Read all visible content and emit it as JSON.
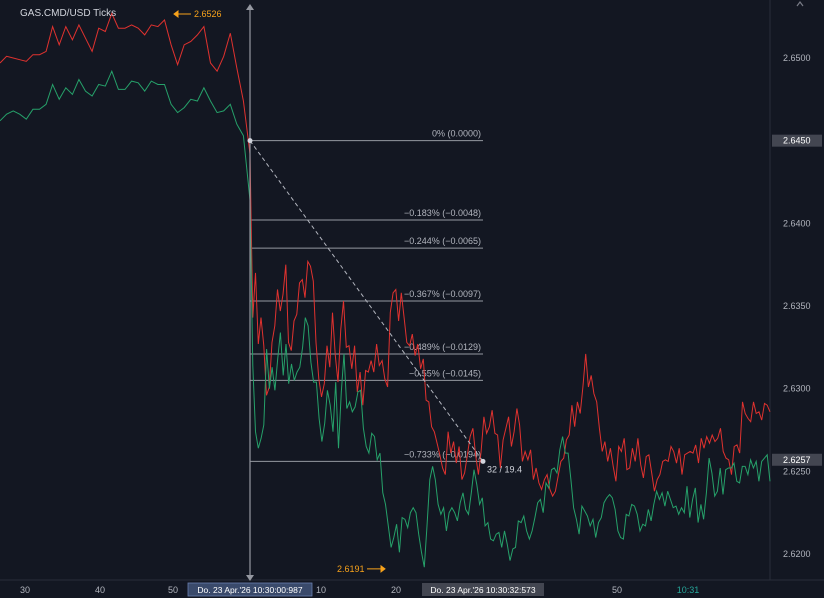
{
  "window": {
    "title": "GAS.CMD/USD  Ticks"
  },
  "colors": {
    "background": "#131722",
    "ask_line": "#e0322f",
    "bid_line": "#26a16a",
    "fib_line": "#9598a1",
    "fib_label": "#b2b5be",
    "price_tag_bg": "#434651",
    "time_tag_bg": "#3a4a6b",
    "marker": "#f7a21b",
    "axis_text": "#b2b5be",
    "crosshair_time": "#26a69a"
  },
  "markers": {
    "high": "2.6526",
    "low": "2.6191"
  },
  "measure_label": "32 / 19.4",
  "fib_levels": [
    {
      "label": "0% (0.0000)",
      "price": 2.645
    },
    {
      "label": "−0.183% (−0.0048)",
      "price": 2.6402
    },
    {
      "label": "−0.244% (−0.0065)",
      "price": 2.6385
    },
    {
      "label": "−0.367% (−0.0097)",
      "price": 2.6353
    },
    {
      "label": "−0.489% (−0.0129)",
      "price": 2.6321
    },
    {
      "label": "−0.55% (−0.0145)",
      "price": 2.6305
    },
    {
      "label": "−0.733% (−0.0194)",
      "price": 2.6256
    }
  ],
  "price_tags": {
    "current": "2.6450",
    "last": "2.6257"
  },
  "time_tags": {
    "start": "Do. 23 Apr.'26  10:30:00:987",
    "end": "Do. 23 Apr.'26  10:30:32:573"
  },
  "chart_data": {
    "type": "line",
    "title": "GAS.CMD/USD  Ticks",
    "y_ticks": [
      "2.6500",
      "2.6450",
      "2.6400",
      "2.6350",
      "2.6300",
      "2.6250",
      "2.6200"
    ],
    "y_tick_values": [
      2.65,
      2.645,
      2.64,
      2.635,
      2.63,
      2.625,
      2.62
    ],
    "ylim": [
      2.6184,
      2.6535
    ],
    "x_ticks": [
      "30",
      "40",
      "50",
      "10",
      "20",
      "50",
      "10:31"
    ],
    "grid": false,
    "series": [
      {
        "values": [
          2.6497,
          2.6501,
          2.65,
          2.6499,
          2.6498,
          2.6502,
          2.6502,
          2.6504,
          2.6519,
          2.6508,
          2.6519,
          2.6511,
          2.652,
          2.6512,
          2.6504,
          2.6518,
          2.6516,
          2.6527,
          2.6518,
          2.6518,
          2.652,
          2.6518,
          2.6514,
          2.652,
          2.6519,
          2.6523,
          2.6508,
          2.6496,
          2.6508,
          2.651,
          2.6514,
          2.6519,
          2.6497,
          2.6492,
          2.6501,
          2.6515,
          2.6494,
          2.6474,
          2.6442,
          2.6343,
          2.637,
          2.6327,
          2.6343,
          2.6326,
          2.6296,
          2.6301,
          2.6328,
          2.6338,
          2.636,
          2.6347,
          2.6357,
          2.6375,
          2.6328,
          2.6323,
          2.6341,
          2.6345,
          2.6364,
          2.6366,
          2.6355,
          2.6377,
          2.6374,
          2.6365,
          2.6328,
          2.6306,
          2.6295,
          2.6303,
          2.6326,
          2.6313,
          2.6346,
          2.632,
          2.6304,
          2.6336,
          2.6353,
          2.6325,
          2.6326,
          2.6312,
          2.6326,
          2.6298,
          2.631,
          2.629,
          2.6311,
          2.631,
          2.6317,
          2.631,
          2.6327,
          2.6314,
          2.6317,
          2.6306,
          2.6301,
          2.6346,
          2.6358,
          2.636,
          2.6341,
          2.6358,
          2.6343,
          2.6328,
          2.6326,
          2.6333,
          2.632,
          2.6327,
          2.6312,
          2.6318,
          2.6293,
          2.6292,
          2.6277,
          2.6274,
          2.6267,
          2.626,
          2.6252,
          2.6248,
          2.6274,
          2.6261,
          2.6268,
          2.6255,
          2.6265,
          2.6245,
          2.6249,
          2.626,
          2.6271,
          2.6276,
          2.626,
          2.6248,
          2.6262,
          2.6283,
          2.6273,
          2.6277,
          2.6287,
          2.6273,
          2.6272,
          2.6252,
          2.6269,
          2.6276,
          2.6283,
          2.6265,
          2.6274,
          2.6288,
          2.6278,
          2.6256,
          2.6262,
          2.6257,
          2.6263,
          2.6245,
          2.6252,
          2.6243,
          2.6239,
          2.6245,
          2.6248,
          2.6239,
          2.6235,
          2.6238,
          2.6247,
          2.6256,
          2.6258,
          2.6269,
          2.6272,
          2.629,
          2.6277,
          2.6292,
          2.6285,
          2.6301,
          2.6321,
          2.6301,
          2.6308,
          2.6297,
          2.6292,
          2.6276,
          2.6262,
          2.6268,
          2.6256,
          2.6264,
          2.6253,
          2.6244,
          2.6265,
          2.6262,
          2.627,
          2.6251,
          2.6252,
          2.6264,
          2.6256,
          2.627,
          2.6254,
          2.6246,
          2.6259,
          2.626,
          2.6249,
          2.6238,
          2.6245,
          2.6248,
          2.6256,
          2.6257,
          2.6256,
          2.6265,
          2.6262,
          2.6255,
          2.6264,
          2.6248,
          2.626,
          2.6261,
          2.6262,
          2.6261,
          2.6266,
          2.6255,
          2.627,
          2.6264,
          2.6271,
          2.6267,
          2.6272,
          2.6268,
          2.627,
          2.6276,
          2.6262,
          2.6258,
          2.6257,
          2.6248,
          2.6265,
          2.6266,
          2.6261,
          2.6292,
          2.6285,
          2.6282,
          2.628,
          2.6292,
          2.6285,
          2.6286,
          2.6281,
          2.6291,
          2.629,
          2.6286
        ]
      },
      {
        "values": [
          2.6462,
          2.6466,
          2.6468,
          2.6466,
          2.6463,
          2.6469,
          2.6469,
          2.6472,
          2.6484,
          2.6475,
          2.6482,
          2.6478,
          2.6487,
          2.648,
          2.6477,
          2.6484,
          2.6483,
          2.6492,
          2.6481,
          2.6481,
          2.6486,
          2.6485,
          2.648,
          2.6486,
          2.6484,
          2.6484,
          2.6472,
          2.6467,
          2.647,
          2.6475,
          2.6474,
          2.6482,
          2.6474,
          2.6467,
          2.6468,
          2.6472,
          2.646,
          2.6453,
          2.6414,
          2.6314,
          2.6274,
          2.6264,
          2.627,
          2.6278,
          2.6324,
          2.63,
          2.6313,
          2.6299,
          2.6318,
          2.6334,
          2.6308,
          2.6327,
          2.6303,
          2.6315,
          2.6305,
          2.631,
          2.6313,
          2.6325,
          2.6343,
          2.6338,
          2.6316,
          2.6304,
          2.6304,
          2.6282,
          2.6268,
          2.6279,
          2.6299,
          2.629,
          2.6274,
          2.6304,
          2.6264,
          2.6298,
          2.6321,
          2.6288,
          2.6292,
          2.6286,
          2.6289,
          2.6298,
          2.6299,
          2.6276,
          2.6265,
          2.6261,
          2.6273,
          2.6271,
          2.6257,
          2.6261,
          2.6237,
          2.623,
          2.6217,
          2.6204,
          2.621,
          2.6218,
          2.6201,
          2.6222,
          2.6221,
          2.6216,
          2.6225,
          2.6228,
          2.6225,
          2.6212,
          2.6201,
          2.6192,
          2.6217,
          2.6245,
          2.6253,
          2.6245,
          2.623,
          2.6224,
          2.6228,
          2.6214,
          2.6225,
          2.6228,
          2.6225,
          2.622,
          2.6231,
          2.6237,
          2.6227,
          2.6224,
          2.6237,
          2.6251,
          2.6242,
          2.623,
          2.6234,
          2.6217,
          2.6219,
          2.6209,
          2.6208,
          2.6212,
          2.6213,
          2.6204,
          2.6214,
          2.6206,
          2.6196,
          2.6203,
          2.6204,
          2.622,
          2.6219,
          2.6223,
          2.6214,
          2.6209,
          2.6214,
          2.6222,
          2.6231,
          2.6233,
          2.6225,
          2.6243,
          2.624,
          2.6251,
          2.6252,
          2.6249,
          2.6263,
          2.6271,
          2.6261,
          2.6261,
          2.6245,
          2.6228,
          2.6221,
          2.6212,
          2.6229,
          2.6226,
          2.6223,
          2.6217,
          2.6221,
          2.621,
          2.6219,
          2.6222,
          2.6231,
          2.6234,
          2.6236,
          2.6234,
          2.6227,
          2.6214,
          2.621,
          2.6209,
          2.6224,
          2.6223,
          2.623,
          2.6229,
          2.6224,
          2.6214,
          2.6218,
          2.6217,
          2.6227,
          2.622,
          2.623,
          2.6238,
          2.6233,
          2.6237,
          2.6229,
          2.6238,
          2.6233,
          2.6228,
          2.6229,
          2.6224,
          2.6228,
          2.6225,
          2.6241,
          2.6222,
          2.6233,
          2.624,
          2.6219,
          2.623,
          2.6221,
          2.6237,
          2.6258,
          2.6249,
          2.6235,
          2.6238,
          2.6252,
          2.6236,
          2.6251,
          2.6252,
          2.6252,
          2.6255,
          2.6244,
          2.6243,
          2.6253,
          2.6253,
          2.6248,
          2.6257,
          2.6252,
          2.6256,
          2.6244,
          2.6256,
          2.6258,
          2.626,
          2.6244
        ]
      }
    ]
  }
}
